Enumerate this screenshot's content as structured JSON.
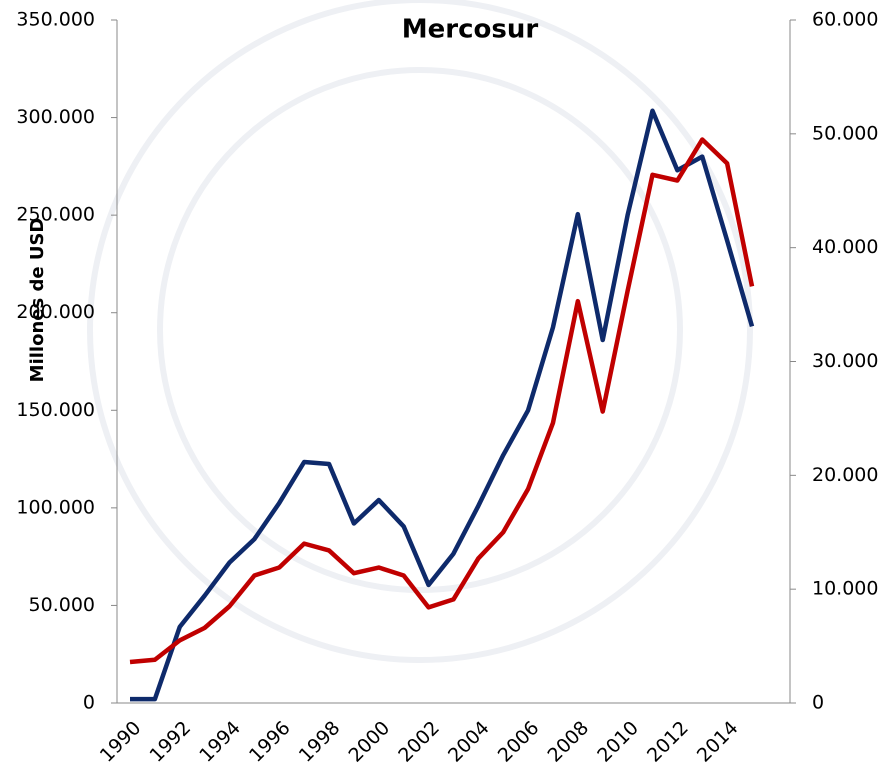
{
  "chart_data": {
    "type": "line",
    "title": "Mercosur",
    "y_label": "Millones de USD",
    "categories": [
      "1990",
      null,
      "1992",
      null,
      "1994",
      null,
      "1996",
      null,
      "1998",
      null,
      "2000",
      null,
      "2002",
      null,
      "2004",
      null,
      "2006",
      null,
      "2008",
      null,
      "2010",
      null,
      "2012",
      null,
      "2014",
      null
    ],
    "series": [
      {
        "color": "#0e2a6b",
        "axis": "y",
        "values": [
          2000,
          2000,
          39000,
          55000,
          72000,
          84000,
          102500,
          123500,
          122500,
          92000,
          104000,
          90500,
          60500,
          76500,
          101000,
          127000,
          150000,
          192500,
          250500,
          186000,
          250000,
          303500,
          273000,
          280000,
          237000,
          193000
        ]
      },
      {
        "color": "#c00000",
        "axis": "y2",
        "values": [
          3600,
          3800,
          5500,
          6600,
          8500,
          11200,
          11900,
          14000,
          13400,
          11400,
          11900,
          11200,
          8400,
          9100,
          12700,
          15000,
          18800,
          24600,
          35300,
          25600,
          36200,
          46400,
          45900,
          49500,
          47400,
          36600
        ]
      }
    ],
    "ylim": [
      0,
      350000
    ],
    "yticks": [
      0,
      {
        "value": 50000,
        "label": "50.000"
      },
      {
        "value": 100000,
        "label": "100.000"
      },
      {
        "value": 150000,
        "label": "150.000"
      },
      {
        "value": 200000,
        "label": "200.000"
      },
      {
        "value": 250000,
        "label": "250.000"
      },
      {
        "value": 300000,
        "label": "300.000"
      },
      {
        "value": 350000,
        "label": "350.000"
      }
    ],
    "y2lim": [
      0,
      60000
    ],
    "y2ticks": [
      0,
      {
        "value": 10000,
        "label": "10.000"
      },
      {
        "value": 20000,
        "label": "20.000"
      },
      {
        "value": 30000,
        "label": "30.000"
      },
      {
        "value": 40000,
        "label": "40.000"
      },
      {
        "value": 50000,
        "label": "50.000"
      },
      {
        "value": 60000,
        "label": "60.000"
      }
    ]
  }
}
